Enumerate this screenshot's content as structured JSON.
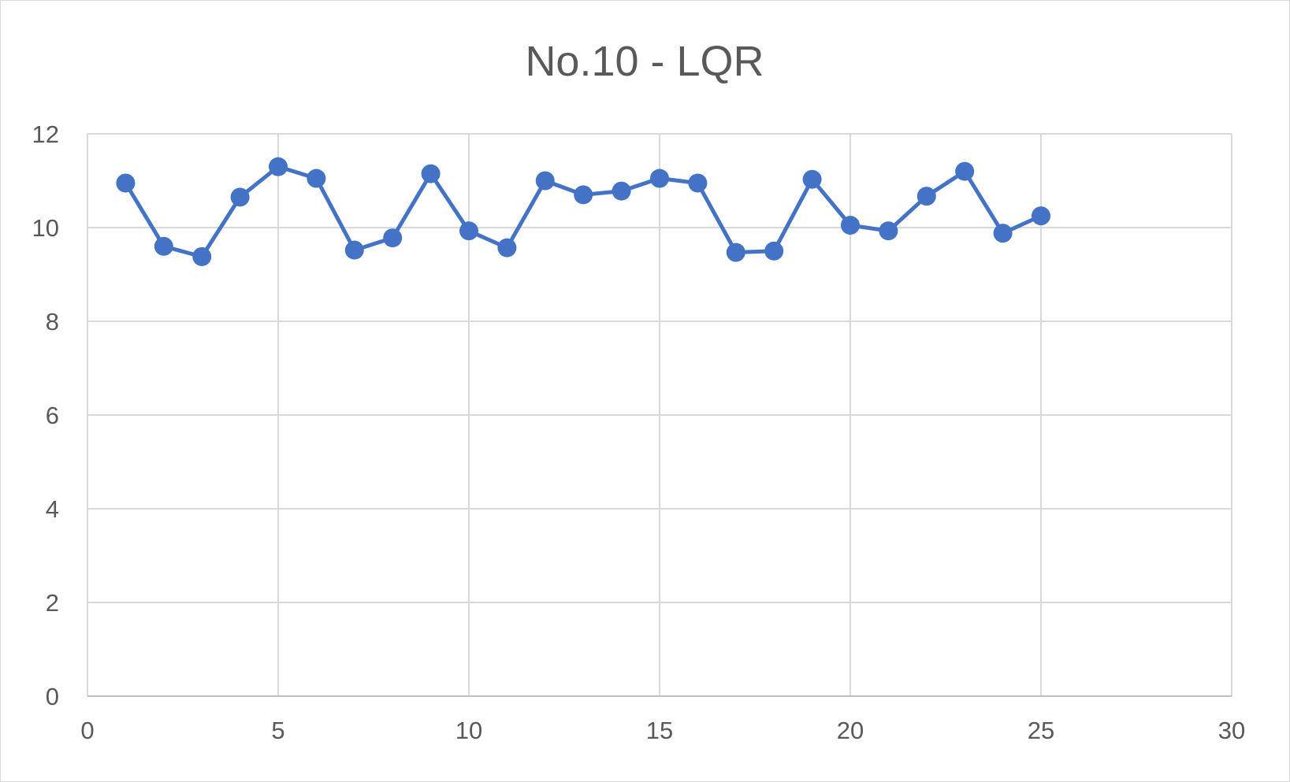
{
  "chart_data": {
    "type": "scatter",
    "title": "No.10 - LQR",
    "xlabel": "",
    "ylabel": "",
    "xlim": [
      0,
      30
    ],
    "ylim": [
      0,
      12
    ],
    "x_ticks": [
      0,
      5,
      10,
      15,
      20,
      25,
      30
    ],
    "y_ticks": [
      0,
      2,
      4,
      6,
      8,
      10,
      12
    ],
    "grid": true,
    "legend": "none",
    "series": [
      {
        "color": "#4472C4",
        "marker": "circle",
        "line": true,
        "x": [
          1,
          2,
          3,
          4,
          5,
          6,
          7,
          8,
          9,
          10,
          11,
          12,
          13,
          14,
          15,
          16,
          17,
          18,
          19,
          20,
          21,
          22,
          23,
          24,
          25
        ],
        "y": [
          10.95,
          9.6,
          9.38,
          10.65,
          11.3,
          11.05,
          9.52,
          9.78,
          11.15,
          9.93,
          9.57,
          11.0,
          10.7,
          10.78,
          11.05,
          10.95,
          9.47,
          9.5,
          11.03,
          10.05,
          9.93,
          10.67,
          11.2,
          9.88,
          10.25
        ]
      }
    ]
  }
}
